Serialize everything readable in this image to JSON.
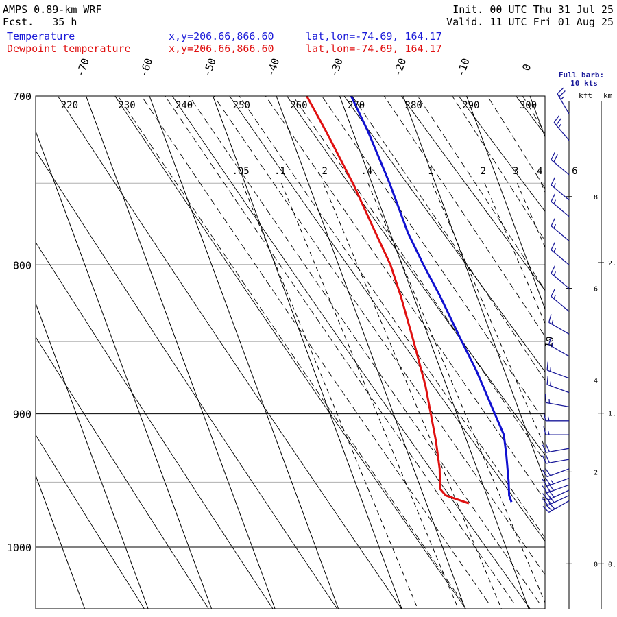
{
  "header": {
    "model": "AMPS 0.89-km WRF",
    "fcst": "Fcst.   35 h",
    "init": "Init. 00 UTC Thu 31 Jul 25",
    "valid": "Valid. 11 UTC Fri 01 Aug 25",
    "temp_label": "Temperature",
    "dew_label": "Dewpoint temperature",
    "temp_xy": "x,y=206.66,866.60",
    "dew_xy": "x,y=206.66,866.60",
    "temp_latlon": "lat,lon=-74.69, 164.17",
    "dew_latlon": "lat,lon=-74.69, 164.17"
  },
  "wind_legend": {
    "line1": "Full barb:",
    "line2": "10 kts",
    "kft": "kft",
    "km": "km"
  },
  "colors": {
    "temperature": "#1010d0",
    "dewpoint": "#e01010",
    "barbs": "#1a1a9a",
    "header_blue": "#1818d8",
    "header_red": "#e01010"
  },
  "chart_data": {
    "type": "line",
    "subtype": "skew-T log-p sounding",
    "y_scale": "log (pressure)",
    "ylim": [
      1040,
      700
    ],
    "pressure_ticks": [
      "700",
      "800",
      "900",
      "1000"
    ],
    "pressure_gridlines": [
      700,
      750,
      800,
      850,
      900,
      950,
      1000
    ],
    "isotherm_labels": [
      "-70",
      "-60",
      "-50",
      "-40",
      "-30",
      "-20",
      "-10",
      "0"
    ],
    "isotherm_values": [
      -70,
      -60,
      -50,
      -40,
      -30,
      -20,
      -10,
      0
    ],
    "dry_adiabat_labels": [
      "220",
      "230",
      "240",
      "250",
      "260",
      "270",
      "280",
      "290",
      "300"
    ],
    "dry_adiabat_values": [
      220,
      230,
      240,
      250,
      260,
      270,
      280,
      290,
      300
    ],
    "mixing_ratio_labels": [
      ".05",
      ".1",
      ".2",
      ".4",
      "1",
      "2",
      "3",
      "4",
      "6"
    ],
    "mixing_ratio_values": [
      0.05,
      0.1,
      0.2,
      0.4,
      1,
      2,
      3,
      4,
      6
    ],
    "moist_adiabat_label": "10",
    "height_kft_ticks": [
      "8",
      "6",
      "4",
      "2",
      "0"
    ],
    "height_kft_values": [
      8,
      6,
      4,
      2,
      0
    ],
    "height_km_ticks": [
      "2.",
      "1.",
      "0."
    ],
    "height_km_values": [
      2,
      1,
      0
    ],
    "series": [
      {
        "name": "Temperature",
        "points": [
          [
            700,
            -28.2
          ],
          [
            720,
            -27.6
          ],
          [
            750,
            -27.2
          ],
          [
            780,
            -27.2
          ],
          [
            800,
            -26.6
          ],
          [
            820,
            -25.8
          ],
          [
            850,
            -25.0
          ],
          [
            870,
            -24.4
          ],
          [
            900,
            -24.0
          ],
          [
            915,
            -23.8
          ],
          [
            930,
            -24.6
          ],
          [
            950,
            -25.8
          ],
          [
            960,
            -26.5
          ],
          [
            965,
            -26.5
          ]
        ]
      },
      {
        "name": "Dewpoint temperature",
        "points": [
          [
            700,
            -35.2
          ],
          [
            720,
            -34.2
          ],
          [
            750,
            -33.0
          ],
          [
            780,
            -32.3
          ],
          [
            800,
            -31.8
          ],
          [
            820,
            -32.0
          ],
          [
            850,
            -32.6
          ],
          [
            880,
            -33.3
          ],
          [
            900,
            -34.1
          ],
          [
            920,
            -34.9
          ],
          [
            940,
            -35.9
          ],
          [
            955,
            -37.0
          ],
          [
            960,
            -36.5
          ],
          [
            966,
            -33.3
          ]
        ]
      }
    ],
    "wind_barbs": [
      {
        "p": 710,
        "dir": 330,
        "kts": 25
      },
      {
        "p": 725,
        "dir": 320,
        "kts": 25
      },
      {
        "p": 745,
        "dir": 310,
        "kts": 20
      },
      {
        "p": 760,
        "dir": 310,
        "kts": 15
      },
      {
        "p": 770,
        "dir": 310,
        "kts": 15
      },
      {
        "p": 785,
        "dir": 310,
        "kts": 15
      },
      {
        "p": 800,
        "dir": 310,
        "kts": 15
      },
      {
        "p": 815,
        "dir": 310,
        "kts": 15
      },
      {
        "p": 830,
        "dir": 310,
        "kts": 15
      },
      {
        "p": 845,
        "dir": 300,
        "kts": 15
      },
      {
        "p": 860,
        "dir": 300,
        "kts": 15
      },
      {
        "p": 875,
        "dir": 290,
        "kts": 15
      },
      {
        "p": 885,
        "dir": 290,
        "kts": 15
      },
      {
        "p": 895,
        "dir": 280,
        "kts": 15
      },
      {
        "p": 905,
        "dir": 270,
        "kts": 15
      },
      {
        "p": 915,
        "dir": 270,
        "kts": 15
      },
      {
        "p": 925,
        "dir": 260,
        "kts": 20
      },
      {
        "p": 933,
        "dir": 260,
        "kts": 20
      },
      {
        "p": 940,
        "dir": 250,
        "kts": 20
      },
      {
        "p": 947,
        "dir": 250,
        "kts": 25
      },
      {
        "p": 952,
        "dir": 250,
        "kts": 30
      },
      {
        "p": 956,
        "dir": 245,
        "kts": 30
      },
      {
        "p": 960,
        "dir": 245,
        "kts": 30
      },
      {
        "p": 964,
        "dir": 240,
        "kts": 30
      }
    ]
  }
}
